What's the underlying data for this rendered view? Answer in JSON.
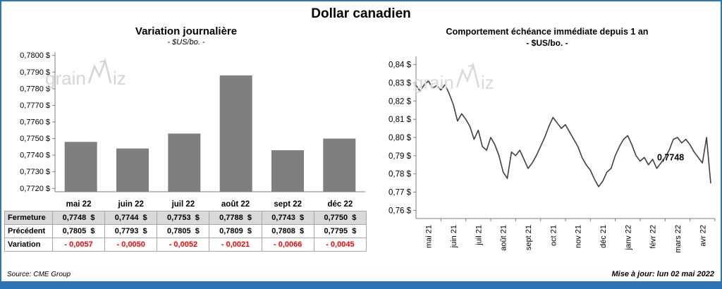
{
  "page_title": "Dollar canadien",
  "watermark": {
    "part1": "grain",
    "part2": "iz"
  },
  "left": {
    "title": "Variation  journalière",
    "subtitle": "- $US/bo. -"
  },
  "right": {
    "title": "Comportement échéance immédiate depuis 1 an",
    "subtitle": "- $US/bo. -"
  },
  "footer": {
    "source": "Source: CME Group",
    "updated": "Mise à jour: lun 02 mai 2022"
  },
  "table": {
    "rows": [
      {
        "label": "Fermeture",
        "highlight": true,
        "variation": false,
        "values": [
          "0,7748  $",
          "0,7744  $",
          "0,7753  $",
          "0,7788  $",
          "0,7743  $",
          "0,7750  $"
        ]
      },
      {
        "label": "Précédent",
        "highlight": false,
        "variation": false,
        "values": [
          "0,7805  $",
          "0,7793  $",
          "0,7805  $",
          "0,7809  $",
          "0,7808  $",
          "0,7795  $"
        ]
      },
      {
        "label": "Variation",
        "highlight": false,
        "variation": true,
        "values": [
          "- 0,0057",
          "- 0,0050",
          "- 0,0052",
          "- 0,0021",
          "- 0,0066",
          "- 0,0045"
        ]
      }
    ]
  },
  "chart_data": [
    {
      "type": "bar",
      "title": "Variation journalière",
      "subtitle": "- $US/bo. -",
      "categories": [
        "mai 22",
        "juin 22",
        "juil 22",
        "août 22",
        "sept 22",
        "déc 22"
      ],
      "values": [
        0.7748,
        0.7744,
        0.7753,
        0.7788,
        0.7743,
        0.775
      ],
      "ylabel": "$US/bo.",
      "ylim": [
        0.7718,
        0.7802
      ],
      "plot_ymin": 0.7718,
      "plot_ymax": 0.7802,
      "yticks": [
        0.772,
        0.773,
        0.774,
        0.775,
        0.776,
        0.777,
        0.778,
        0.779,
        0.78
      ],
      "ytick_labels": [
        "0,7720 $",
        "0,7730 $",
        "0,7740 $",
        "0,7750 $",
        "0,7760 $",
        "0,7770 $",
        "0,7780 $",
        "0,7790 $",
        "0,7800 $"
      ],
      "bar_color": "#7F7F7F",
      "grid": false,
      "source": "CME Group"
    },
    {
      "type": "line",
      "title": "Comportement échéance immédiate depuis 1 an",
      "subtitle": "- $US/bo. -",
      "x_labels": [
        "mai 21",
        "juin 21",
        "juil 21",
        "août 21",
        "sept 21",
        "oct 21",
        "nov 21",
        "déc 21",
        "janv 22",
        "févr 22",
        "mars 22",
        "avr 22"
      ],
      "ylim": [
        0.7555,
        0.8445
      ],
      "plot_ymin": 0.7555,
      "plot_ymax": 0.8445,
      "yticks": [
        0.76,
        0.77,
        0.78,
        0.79,
        0.8,
        0.81,
        0.82,
        0.83,
        0.84
      ],
      "ytick_labels": [
        "0,76 $",
        "0,77 $",
        "0,78 $",
        "0,79 $",
        "0,80 $",
        "0,81 $",
        "0,82 $",
        "0,83 $",
        "0,84 $"
      ],
      "line_color": "#3F3F3F",
      "end_label": "0,7748",
      "end_value": 0.7748,
      "annotation_y": 0.7875,
      "values": [
        0.8285,
        0.8255,
        0.829,
        0.831,
        0.827,
        0.8285,
        0.826,
        0.829,
        0.824,
        0.818,
        0.809,
        0.813,
        0.81,
        0.806,
        0.799,
        0.804,
        0.795,
        0.793,
        0.8,
        0.796,
        0.79,
        0.781,
        0.7775,
        0.792,
        0.79,
        0.793,
        0.788,
        0.783,
        0.786,
        0.79,
        0.795,
        0.8,
        0.806,
        0.811,
        0.808,
        0.805,
        0.807,
        0.803,
        0.799,
        0.795,
        0.789,
        0.785,
        0.782,
        0.777,
        0.773,
        0.776,
        0.781,
        0.783,
        0.79,
        0.795,
        0.799,
        0.801,
        0.796,
        0.79,
        0.787,
        0.789,
        0.785,
        0.788,
        0.783,
        0.786,
        0.789,
        0.793,
        0.799,
        0.8,
        0.797,
        0.799,
        0.796,
        0.792,
        0.789,
        0.786,
        0.8,
        0.7748
      ]
    }
  ]
}
